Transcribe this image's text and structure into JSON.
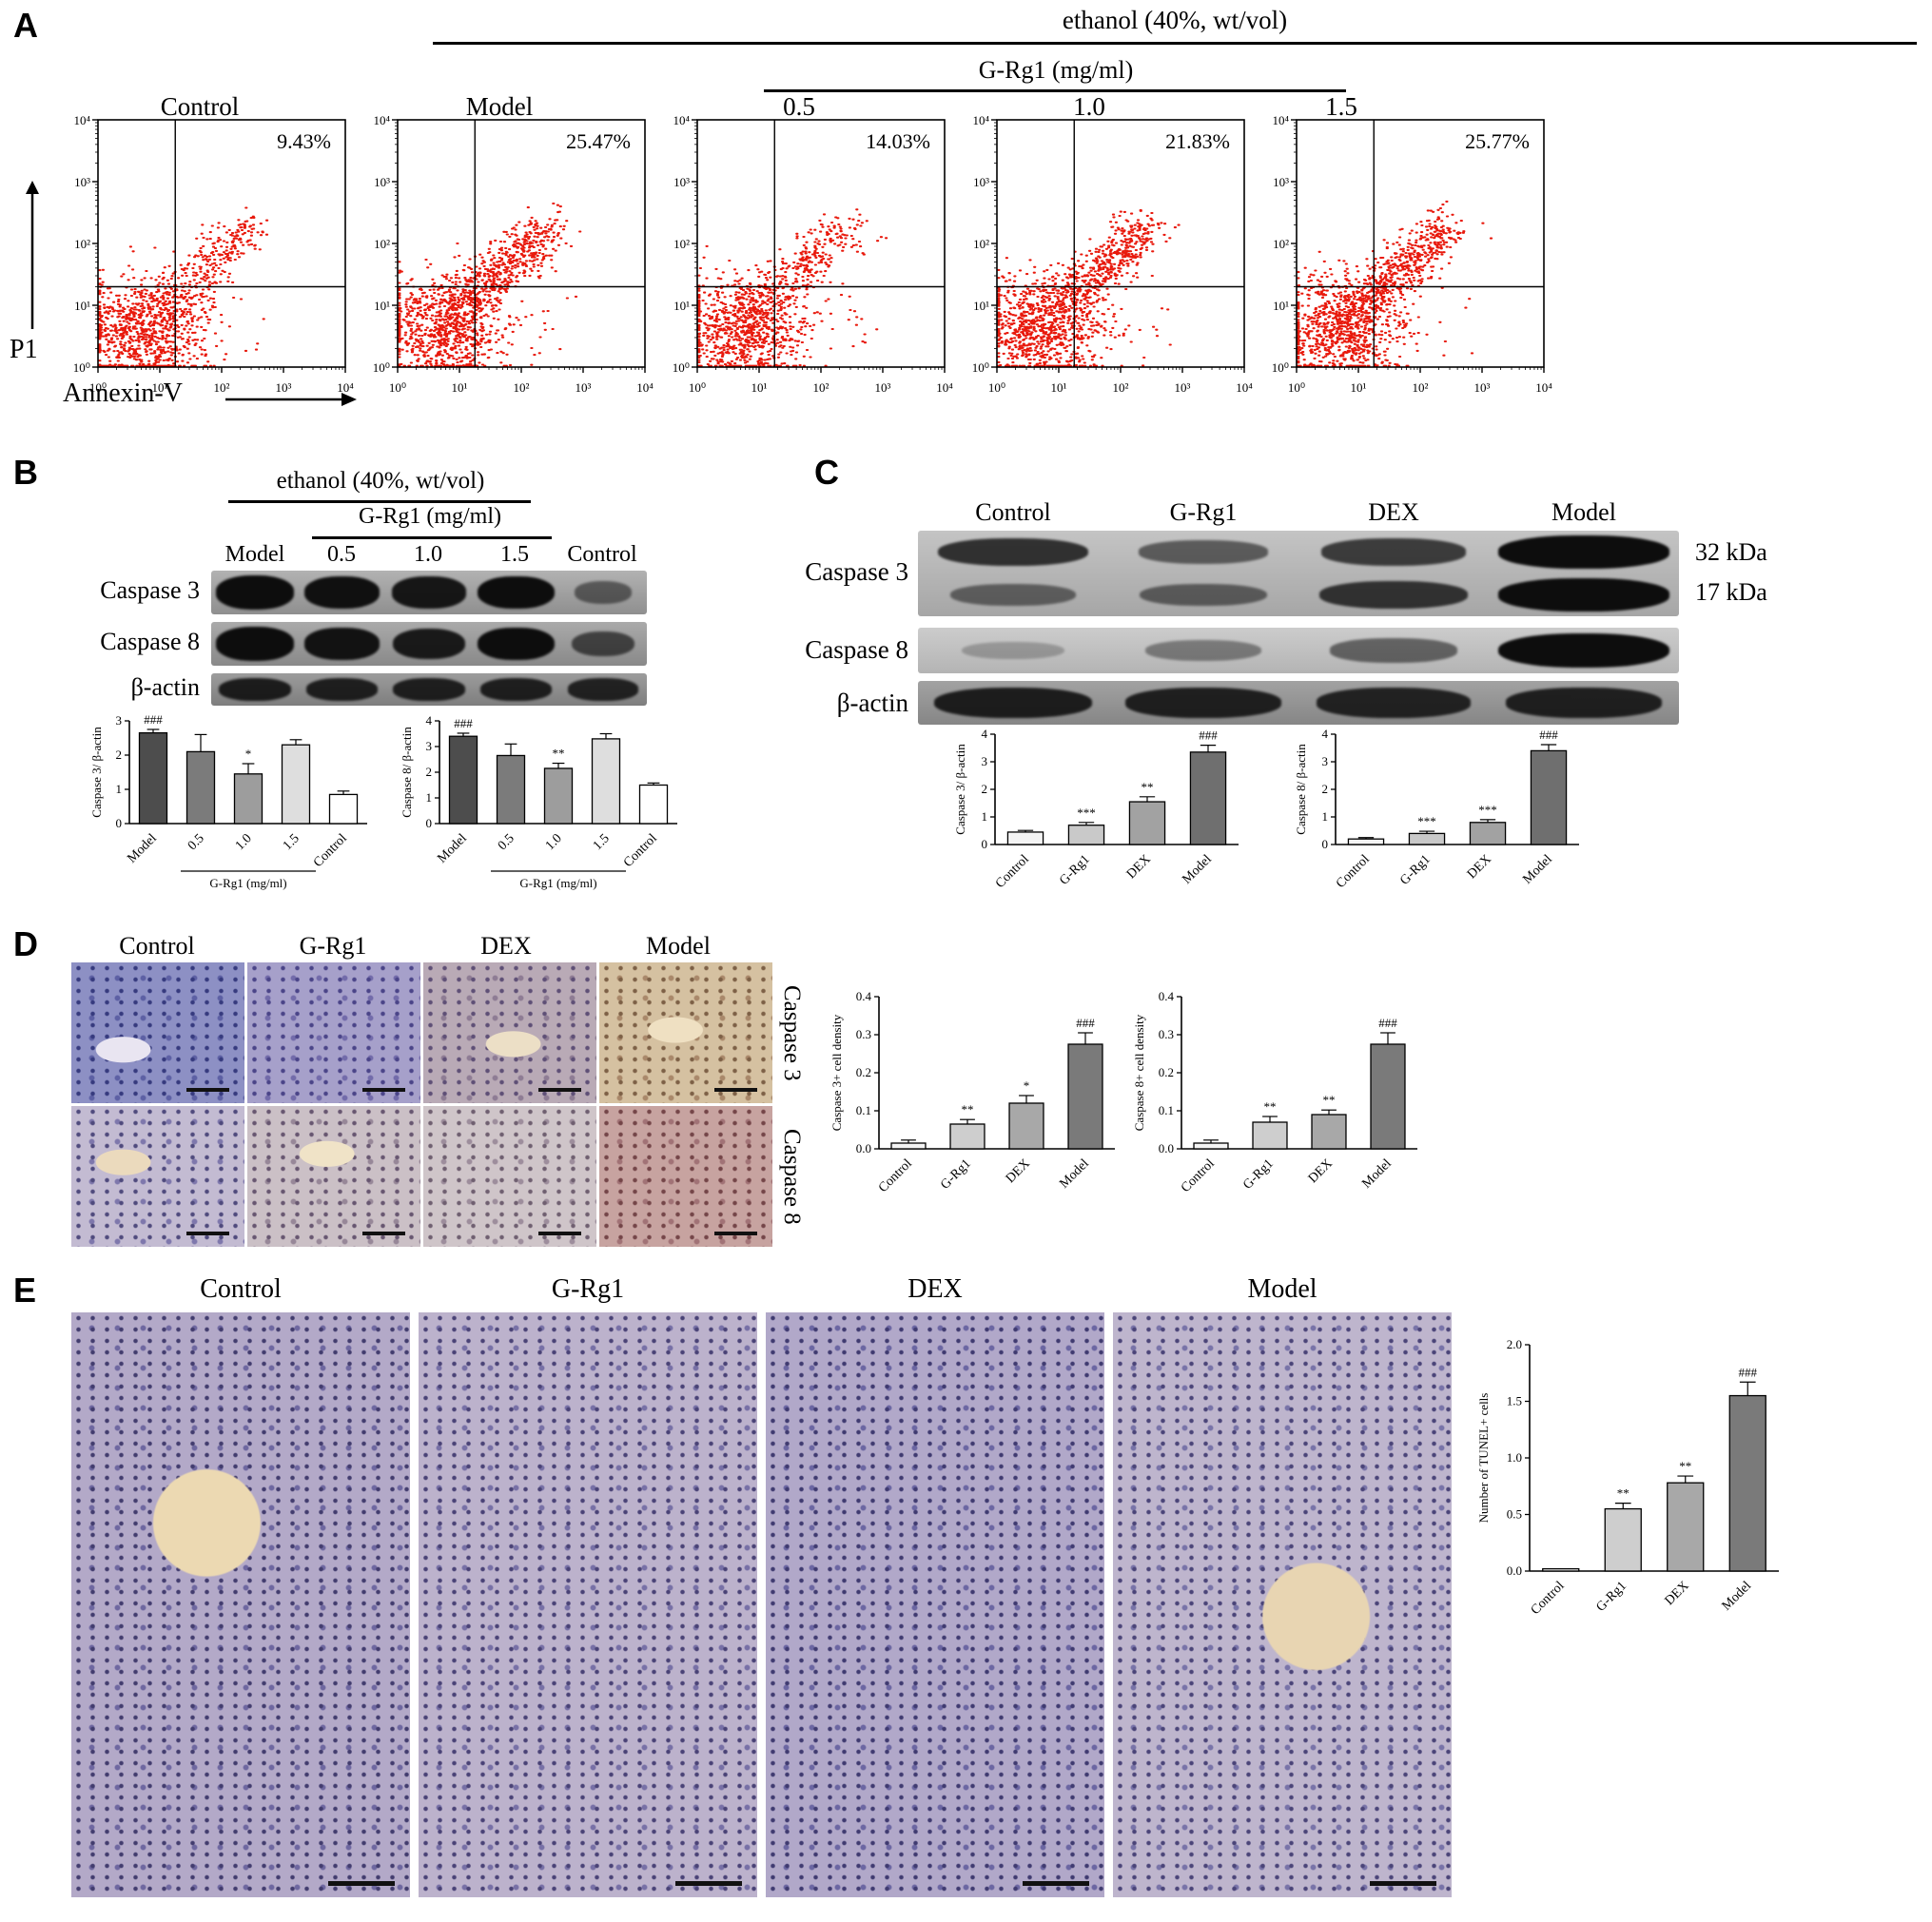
{
  "figure": {
    "panel_a": {
      "label": "A",
      "ethanol_header": "ethanol (40%, wt/vol)",
      "grg1_header": "G-Rg1 (mg/ml)",
      "x_axis_label": "Annexin-V",
      "y_axis_label": "P1",
      "axis_ticks": [
        "10⁰",
        "10¹",
        "10²",
        "10³",
        "10⁴"
      ],
      "plots": [
        {
          "title": "Control",
          "percent": "9.43%"
        },
        {
          "title": "Model",
          "percent": "25.47%"
        },
        {
          "title": "0.5",
          "percent": "14.03%"
        },
        {
          "title": "1.0",
          "percent": "21.83%"
        },
        {
          "title": "1.5",
          "percent": "25.77%"
        }
      ]
    },
    "panel_b": {
      "label": "B",
      "ethanol_header": "ethanol (40%, wt/vol)",
      "grg1_header": "G-Rg1 (mg/ml)",
      "lanes": [
        "Model",
        "0.5",
        "1.0",
        "1.5",
        "Control"
      ],
      "rows": [
        {
          "name": "Caspase 3",
          "bg1": "#b2b2b2",
          "bg2": "#8f8f8f",
          "strips": [
            [
              1,
              0.92,
              0.88,
              0.95,
              0.4
            ]
          ]
        },
        {
          "name": "Caspase 8",
          "bg1": "#aaaaaa",
          "bg2": "#898989",
          "strips": [
            [
              1,
              0.9,
              0.85,
              0.95,
              0.55
            ]
          ]
        },
        {
          "name": "β-actin",
          "bg1": "#9c9c9c",
          "bg2": "#7e7e7e",
          "strips": [
            [
              0.82,
              0.8,
              0.8,
              0.8,
              0.78
            ]
          ]
        }
      ]
    },
    "panel_c": {
      "label": "C",
      "lanes": [
        "Control",
        "G-Rg1",
        "DEX",
        "Model"
      ],
      "kda": [
        "32 kDa",
        "17 kDa"
      ],
      "rows": [
        {
          "name": "Caspase 3",
          "bg1": "#c4c4c4",
          "bg2": "#a6a6a6",
          "strips": [
            [
              0.72,
              0.45,
              0.65,
              1
            ],
            [
              0.4,
              0.42,
              0.7,
              1
            ]
          ]
        },
        {
          "name": "Caspase 8",
          "bg1": "#cccccc",
          "bg2": "#b4b4b4",
          "strips": [
            [
              0.1,
              0.28,
              0.42,
              1
            ]
          ]
        },
        {
          "name": "β-actin",
          "bg1": "#a2a2a2",
          "bg2": "#868686",
          "strips": [
            [
              0.82,
              0.8,
              0.78,
              0.8
            ]
          ]
        }
      ]
    },
    "panel_d": {
      "label": "D",
      "columns": [
        "Control",
        "G-Rg1",
        "DEX",
        "Model"
      ],
      "row_labels": [
        "Caspase 3",
        "Caspase 8"
      ],
      "tissues": [
        {
          "base": "#8d90c4",
          "dots": "#363a7e",
          "dots2": "#5d60a4",
          "vessel": "#e9e5f1",
          "vx": 30,
          "vy": 62
        },
        {
          "base": "#a6a0ca",
          "dots": "#4a4488",
          "dots2": "#726baa"
        },
        {
          "base": "#b9aab6",
          "dots": "#5e4f76",
          "dots2": "#8e7c94",
          "vessel": "#ecdfc6",
          "vx": 52,
          "vy": 58
        },
        {
          "base": "#d5c1a1",
          "dots": "#7d6046",
          "dots2": "#a9886a",
          "vessel": "#efe0c2",
          "vx": 44,
          "vy": 48
        },
        {
          "base": "#c3bbd2",
          "dots": "#4f4a7d",
          "dots2": "#7e77ac",
          "vessel": "#ebdabd",
          "vx": 30,
          "vy": 40
        },
        {
          "base": "#cbc0c6",
          "dots": "#675670",
          "dots2": "#978798",
          "vessel": "#f0e3c7",
          "vx": 46,
          "vy": 34
        },
        {
          "base": "#cfc5c9",
          "dots": "#6f5f70",
          "dots2": "#9d8d9c"
        },
        {
          "base": "#c7a3a0",
          "dots": "#744548",
          "dots2": "#a17276"
        }
      ]
    },
    "panel_e": {
      "label": "E",
      "columns": [
        "Control",
        "G-Rg1",
        "DEX",
        "Model"
      ],
      "tissues": [
        {
          "base": "#b3a9c8",
          "dots": "#423c6e",
          "dots2": "#6e67a0",
          "vessel": "#ecd9b2",
          "vx": 40,
          "vy": 36
        },
        {
          "base": "#bcb2cc",
          "dots": "#494276",
          "dots2": "#7770a6"
        },
        {
          "base": "#b1a8c9",
          "dots": "#3f3a70",
          "dots2": "#6b66a2"
        },
        {
          "base": "#beb5cd",
          "dots": "#4a4478",
          "dots2": "#7873a8",
          "vessel": "#e8d5b2",
          "vx": 60,
          "vy": 52
        }
      ]
    }
  },
  "chart_data": [
    {
      "id": "b-caspase3",
      "type": "bar",
      "ylabel": "Caspase 3/ β-actin",
      "ylim": [
        0,
        3
      ],
      "yticks": [
        0,
        1,
        2,
        3
      ],
      "ytick_labels": [
        "0",
        "1",
        "2",
        "3"
      ],
      "categories": [
        "Model",
        "0.5",
        "1.0",
        "1.5",
        "Control"
      ],
      "values": [
        2.65,
        2.1,
        1.45,
        2.3,
        0.85
      ],
      "errors": [
        0.1,
        0.5,
        0.3,
        0.15,
        0.1
      ],
      "annotations": [
        "###",
        "",
        "*",
        "",
        ""
      ],
      "colors": [
        "#4d4d4d",
        "#7b7b7b",
        "#9d9d9d",
        "#dedede",
        "#ffffff"
      ],
      "group_label": "G-Rg1 (mg/ml)",
      "group_span": [
        1,
        3
      ]
    },
    {
      "id": "b-caspase8",
      "type": "bar",
      "ylabel": "Caspase 8/ β-actin",
      "ylim": [
        0,
        4
      ],
      "yticks": [
        0,
        1,
        2,
        3,
        4
      ],
      "ytick_labels": [
        "0",
        "1",
        "2",
        "3",
        "4"
      ],
      "categories": [
        "Model",
        "0.5",
        "1.0",
        "1.5",
        "Control"
      ],
      "values": [
        3.4,
        2.65,
        2.15,
        3.3,
        1.5
      ],
      "errors": [
        0.12,
        0.45,
        0.2,
        0.2,
        0.08
      ],
      "annotations": [
        "###",
        "",
        "**",
        "",
        ""
      ],
      "colors": [
        "#4d4d4d",
        "#7b7b7b",
        "#9d9d9d",
        "#dedede",
        "#ffffff"
      ],
      "group_label": "G-Rg1 (mg/ml)",
      "group_span": [
        1,
        3
      ]
    },
    {
      "id": "c-caspase3",
      "type": "bar",
      "ylabel": "Caspase 3/ β-actin",
      "ylim": [
        0,
        4
      ],
      "yticks": [
        0,
        1,
        2,
        3,
        4
      ],
      "ytick_labels": [
        "0",
        "1",
        "2",
        "3",
        "4"
      ],
      "categories": [
        "Control",
        "G-Rg1",
        "DEX",
        "Model"
      ],
      "values": [
        0.45,
        0.7,
        1.55,
        3.35
      ],
      "errors": [
        0.06,
        0.1,
        0.18,
        0.25
      ],
      "annotations": [
        "",
        "***",
        "**",
        "###"
      ],
      "colors": [
        "#f4f4f4",
        "#c9c9c9",
        "#a2a2a2",
        "#6f6f6f"
      ]
    },
    {
      "id": "c-caspase8",
      "type": "bar",
      "ylabel": "Caspase 8/ β-actin",
      "ylim": [
        0,
        4
      ],
      "yticks": [
        0,
        1,
        2,
        3,
        4
      ],
      "ytick_labels": [
        "0",
        "1",
        "2",
        "3",
        "4"
      ],
      "categories": [
        "Control",
        "G-Rg1",
        "DEX",
        "Model"
      ],
      "values": [
        0.2,
        0.4,
        0.8,
        3.4
      ],
      "errors": [
        0.05,
        0.08,
        0.1,
        0.22
      ],
      "annotations": [
        "",
        "***",
        "***",
        "###"
      ],
      "colors": [
        "#f4f4f4",
        "#c9c9c9",
        "#a2a2a2",
        "#6f6f6f"
      ]
    },
    {
      "id": "d-caspase3-density",
      "type": "bar",
      "ylabel": "Caspase 3+ cell density",
      "ylim": [
        0,
        0.4
      ],
      "yticks": [
        0,
        0.1,
        0.2,
        0.3,
        0.4
      ],
      "ytick_labels": [
        "0.0",
        "0.1",
        "0.2",
        "0.3",
        "0.4"
      ],
      "categories": [
        "Control",
        "G-Rg1",
        "DEX",
        "Model"
      ],
      "values": [
        0.015,
        0.065,
        0.12,
        0.275
      ],
      "errors": [
        0.008,
        0.012,
        0.02,
        0.03
      ],
      "annotations": [
        "",
        "**",
        "*",
        "###"
      ],
      "colors": [
        "#f4f4f4",
        "#cecece",
        "#a8a8a8",
        "#7a7a7a"
      ]
    },
    {
      "id": "d-caspase8-density",
      "type": "bar",
      "ylabel": "Caspase 8+ cell density",
      "ylim": [
        0,
        0.4
      ],
      "yticks": [
        0,
        0.1,
        0.2,
        0.3,
        0.4
      ],
      "ytick_labels": [
        "0.0",
        "0.1",
        "0.2",
        "0.3",
        "0.4"
      ],
      "categories": [
        "Control",
        "G-Rg1",
        "DEX",
        "Model"
      ],
      "values": [
        0.015,
        0.07,
        0.09,
        0.275
      ],
      "errors": [
        0.008,
        0.015,
        0.012,
        0.03
      ],
      "annotations": [
        "",
        "**",
        "**",
        "###"
      ],
      "colors": [
        "#f4f4f4",
        "#cecece",
        "#a8a8a8",
        "#7a7a7a"
      ]
    },
    {
      "id": "e-tunel",
      "type": "bar",
      "ylabel": "Number of TUNEL+ cells",
      "ylim": [
        0,
        2
      ],
      "yticks": [
        0,
        0.5,
        1,
        1.5,
        2
      ],
      "ytick_labels": [
        "0.0",
        "0.5",
        "1.0",
        "1.5",
        "2.0"
      ],
      "categories": [
        "Control",
        "G-Rg1",
        "DEX",
        "Model"
      ],
      "values": [
        0.02,
        0.55,
        0.78,
        1.55
      ],
      "errors": [
        0,
        0.05,
        0.06,
        0.12
      ],
      "annotations": [
        "",
        "**",
        "**",
        "###"
      ],
      "colors": [
        "#f4f4f4",
        "#cecece",
        "#a8a8a8",
        "#7a7a7a"
      ]
    }
  ]
}
